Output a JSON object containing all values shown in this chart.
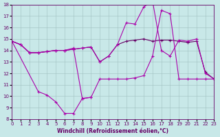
{
  "xlabel": "Windchill (Refroidissement éolien,°C)",
  "ylabel": "",
  "xlim": [
    0,
    23
  ],
  "ylim": [
    8,
    18
  ],
  "xticks": [
    0,
    1,
    2,
    3,
    4,
    5,
    6,
    7,
    8,
    9,
    10,
    11,
    12,
    13,
    14,
    15,
    16,
    17,
    18,
    19,
    20,
    21,
    22,
    23
  ],
  "yticks": [
    8,
    9,
    10,
    11,
    12,
    13,
    14,
    15,
    16,
    17,
    18
  ],
  "bg_color": "#c8e8e8",
  "line_color": "#aa00aa",
  "line_color2": "#660066",
  "series": [
    [
      14.8,
      14.5,
      13.8,
      13.8,
      13.9,
      14.0,
      14.0,
      14.1,
      14.2,
      14.3,
      13.0,
      13.5,
      14.5,
      14.8,
      14.9,
      15.0,
      14.8,
      14.9,
      14.9,
      14.8,
      14.7,
      14.8,
      12.1,
      11.5
    ],
    [
      14.8,
      14.5,
      13.8,
      13.8,
      13.9,
      14.0,
      14.0,
      14.1,
      14.2,
      14.3,
      13.0,
      13.5,
      14.5,
      16.4,
      16.3,
      17.8,
      18.3,
      14.0,
      13.5,
      14.9,
      14.8,
      15.0,
      12.0,
      11.5
    ],
    [
      14.8,
      14.5,
      13.8,
      13.8,
      13.9,
      14.0,
      14.0,
      14.2,
      9.8,
      9.9,
      11.5,
      11.5,
      11.5,
      11.5,
      11.6,
      11.8,
      13.5,
      17.5,
      17.2,
      11.5,
      11.5,
      11.5,
      11.5,
      11.5
    ],
    [
      14.8,
      null,
      null,
      10.4,
      10.1,
      9.5,
      8.5,
      8.5,
      9.8,
      9.9,
      null,
      null,
      null,
      null,
      null,
      null,
      null,
      null,
      null,
      null,
      null,
      null,
      null,
      null
    ]
  ]
}
